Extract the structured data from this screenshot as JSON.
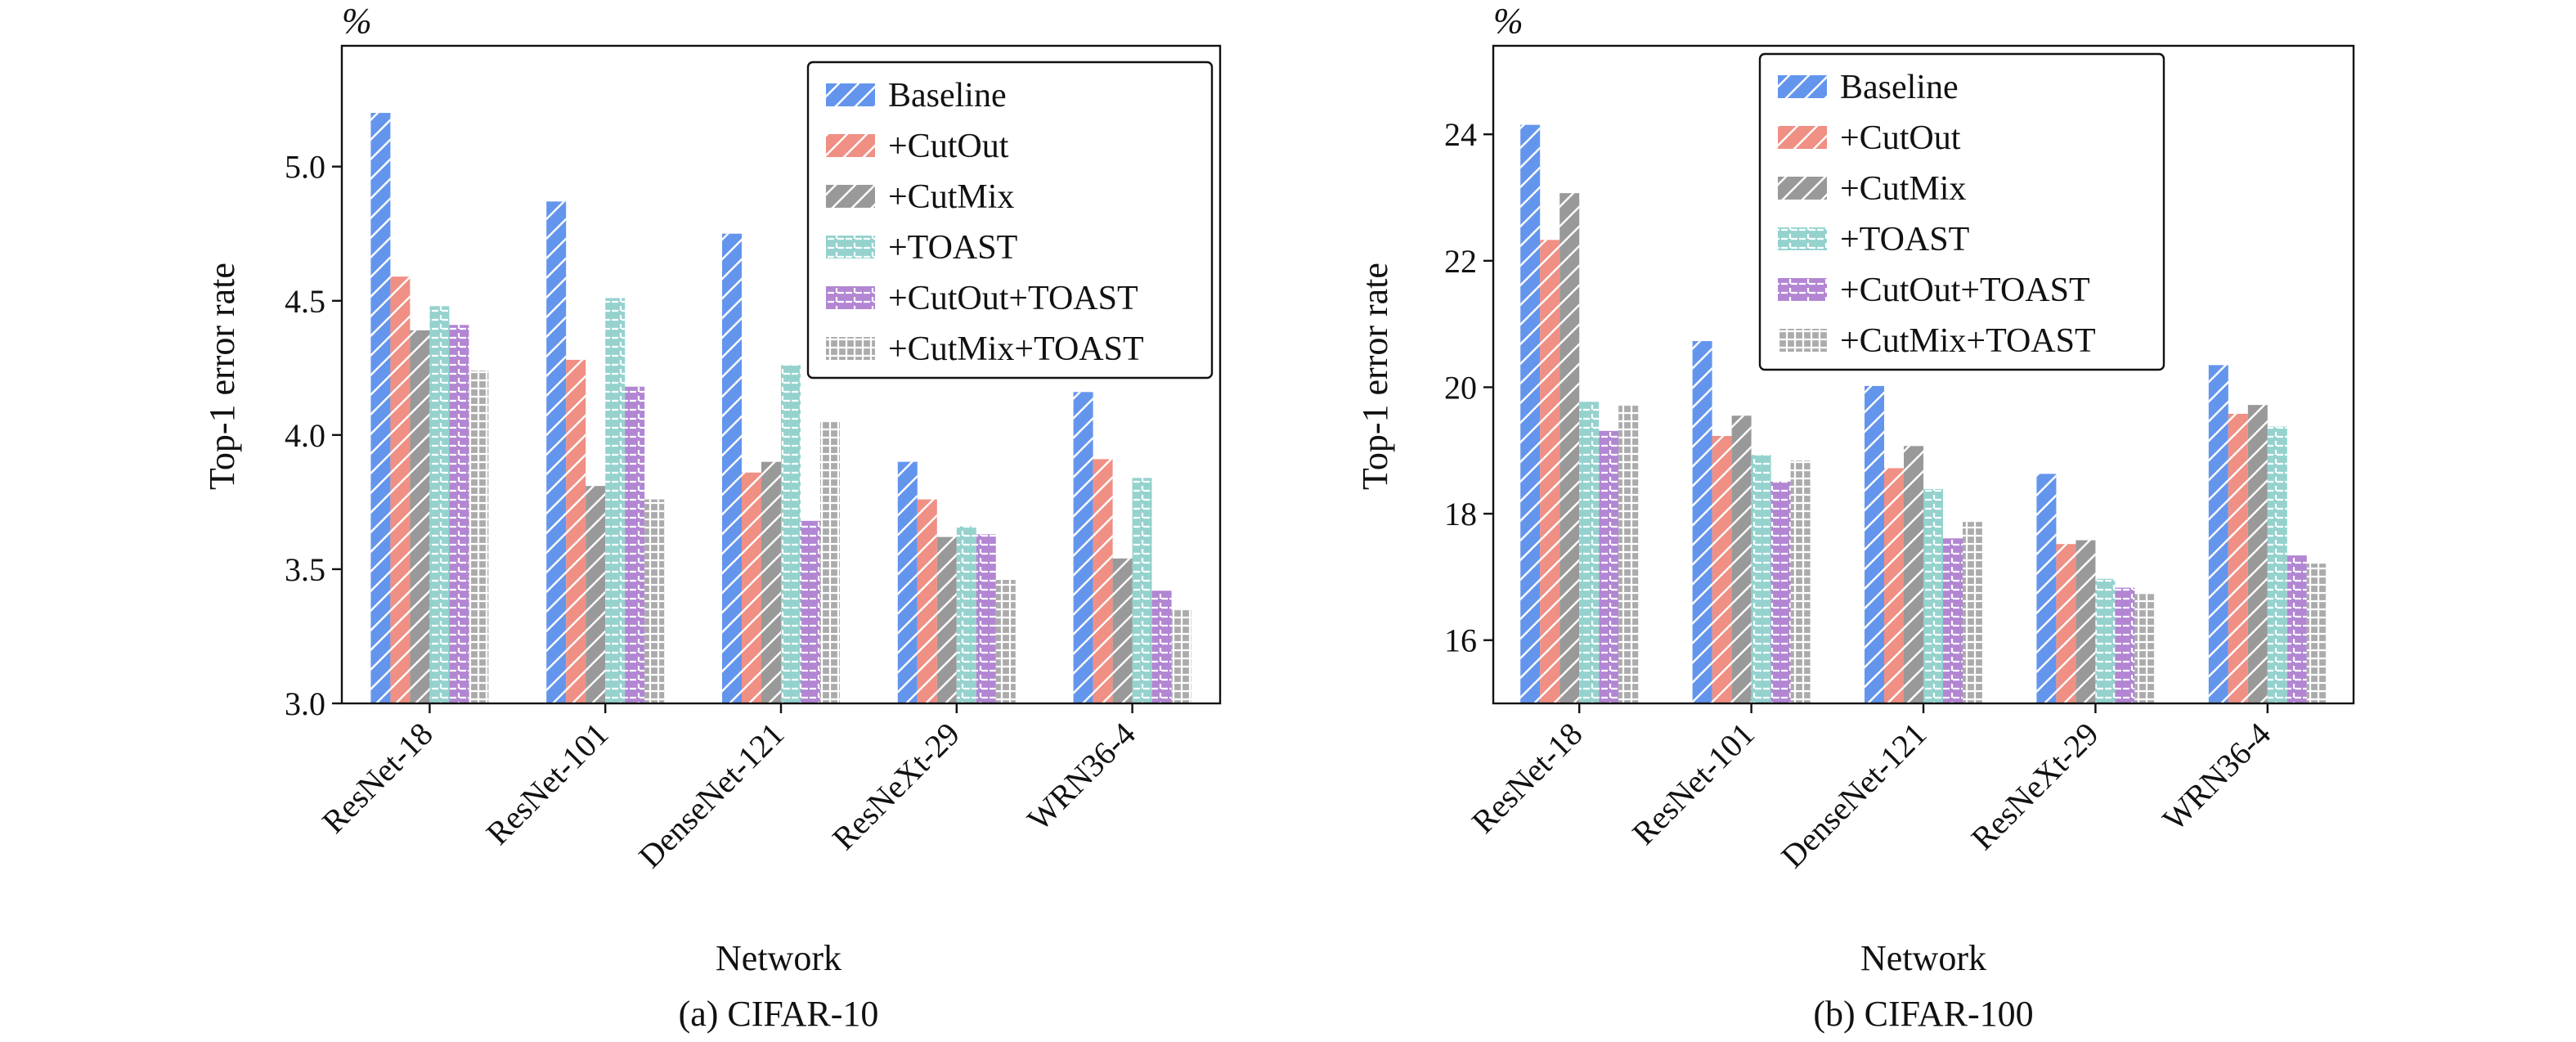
{
  "colors": {
    "Baseline": "#6495ED",
    "+CutOut": "#F08F84",
    "+CutMix": "#999999",
    "+TOAST": "#95D2CE",
    "+CutOut+TOAST": "#B286D2",
    "+CutMix+TOAST": "#ABABAB"
  },
  "chart_data": [
    {
      "type": "bar",
      "caption": "(a) CIFAR-10",
      "unit": "%",
      "xlabel": "Network",
      "ylabel": "Top-1 error rate",
      "categories": [
        "ResNet-18",
        "ResNet-101",
        "DenseNet-121",
        "ResNeXt-29",
        "WRN36-4"
      ],
      "ylim": [
        3.0,
        5.45
      ],
      "yticks": [
        "3.0",
        "3.5",
        "4.0",
        "4.5",
        "5.0"
      ],
      "legend_position": "upper right",
      "series": [
        {
          "name": "Baseline",
          "values": [
            5.2,
            4.87,
            4.75,
            3.9,
            4.16
          ]
        },
        {
          "name": "+CutOut",
          "values": [
            4.59,
            4.28,
            3.86,
            3.76,
            3.91
          ]
        },
        {
          "name": "+CutMix",
          "values": [
            4.39,
            3.81,
            3.9,
            3.62,
            3.54
          ]
        },
        {
          "name": "+TOAST",
          "values": [
            4.48,
            4.51,
            4.26,
            3.66,
            3.84
          ]
        },
        {
          "name": "+CutOut+TOAST",
          "values": [
            4.41,
            4.18,
            3.68,
            3.63,
            3.42
          ]
        },
        {
          "name": "+CutMix+TOAST",
          "values": [
            4.24,
            3.76,
            4.05,
            3.46,
            3.35
          ]
        }
      ]
    },
    {
      "type": "bar",
      "caption": "(b) CIFAR-100",
      "unit": "%",
      "xlabel": "Network",
      "ylabel": "Top-1 error rate",
      "categories": [
        "ResNet-18",
        "ResNet-101",
        "DenseNet-121",
        "ResNeXt-29",
        "WRN36-4"
      ],
      "ylim": [
        15.0,
        25.4
      ],
      "yticks": [
        "16",
        "18",
        "20",
        "22",
        "24"
      ],
      "legend_position": "upper right",
      "series": [
        {
          "name": "Baseline",
          "values": [
            24.15,
            20.73,
            20.02,
            18.63,
            20.35
          ]
        },
        {
          "name": "+CutOut",
          "values": [
            22.33,
            19.23,
            18.72,
            17.52,
            19.58
          ]
        },
        {
          "name": "+CutMix",
          "values": [
            23.07,
            19.55,
            19.07,
            17.58,
            19.72
          ]
        },
        {
          "name": "+TOAST",
          "values": [
            19.77,
            18.93,
            18.39,
            16.97,
            19.38
          ]
        },
        {
          "name": "+CutOut+TOAST",
          "values": [
            19.31,
            18.51,
            17.61,
            16.83,
            17.34
          ]
        },
        {
          "name": "+CutMix+TOAST",
          "values": [
            19.71,
            18.84,
            17.87,
            16.73,
            17.21
          ]
        }
      ]
    }
  ]
}
